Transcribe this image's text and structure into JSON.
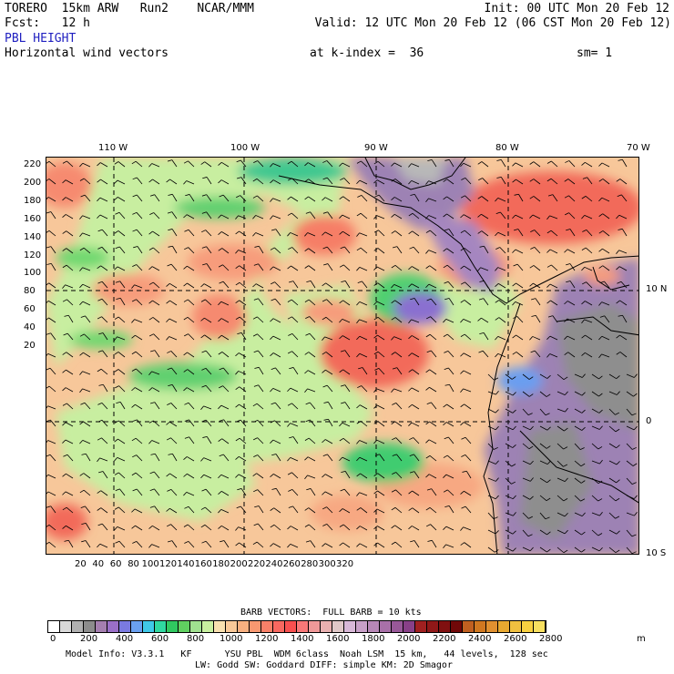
{
  "header": {
    "line1_left": "TORERO  15km ARW   Run2    NCAR/MMM",
    "line1_right": "Init: 00 UTC Mon 20 Feb 12",
    "line2_left": "Fcst:   12 h",
    "line2_right": "Valid: 12 UTC Mon 20 Feb 12 (06 CST Mon 20 Feb 12)",
    "field": "PBL HEIGHT",
    "subfield": "Horizontal wind vectors",
    "kindex": "at k-index =  36",
    "smooth": "sm= 1"
  },
  "map": {
    "top_lon_labels": [
      "110 W",
      "100 W",
      "90 W",
      "80 W",
      "70 W"
    ],
    "right_lat_labels": [
      "10 N",
      "0",
      "10 S"
    ],
    "y_ticks": [
      "220",
      "200",
      "180",
      "160",
      "140",
      "120",
      "100",
      "80",
      "60",
      "40",
      "20"
    ],
    "x_ticks": [
      "20",
      "40",
      "60",
      "80",
      "100",
      "120",
      "140",
      "160",
      "180",
      "200",
      "220",
      "240",
      "260",
      "280",
      "300",
      "320"
    ]
  },
  "legend": {
    "barb_title": "BARB VECTORS:  FULL BARB = 10 kts",
    "units": "m",
    "color_labels": [
      "0",
      "200",
      "400",
      "600",
      "800",
      "1000",
      "1200",
      "1400",
      "1600",
      "1800",
      "2000",
      "2200",
      "2400",
      "2600",
      "2800"
    ],
    "colors": [
      "#ffffff",
      "#d9d9d9",
      "#b0b0b0",
      "#8c8c8c",
      "#a57fb0",
      "#9a6fc8",
      "#7a7ae0",
      "#6aa0f0",
      "#40c8e8",
      "#30d8a0",
      "#30c860",
      "#60d060",
      "#a0e090",
      "#c8f0a0",
      "#f8e0b0",
      "#f8c898",
      "#f8b080",
      "#f89870",
      "#f88068",
      "#f86860",
      "#f85050",
      "#f87878",
      "#f09898",
      "#e8b0b0",
      "#e0c8c8",
      "#d8b8d8",
      "#c8a0c8",
      "#b888b8",
      "#a870a8",
      "#985898",
      "#884088",
      "#a02020",
      "#901818",
      "#801010",
      "#700808",
      "#c06020",
      "#d07820",
      "#e09030",
      "#e8a830",
      "#f0c040",
      "#f8d040",
      "#f8e060"
    ]
  },
  "footer": {
    "line1": "Model Info: V3.3.1   KF      YSU PBL  WDM 6class  Noah LSM  15 km,   44 levels,  128 sec",
    "line2": "LW: Godd SW: Goddard DIFF: simple KM: 2D Smagor"
  }
}
